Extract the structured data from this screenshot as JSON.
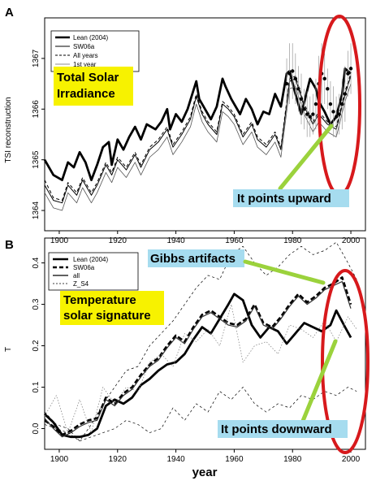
{
  "chart_data": [
    {
      "panel": "A",
      "type": "line",
      "ylabel": "TSI reconstruction",
      "xlim": [
        1895,
        2005
      ],
      "ylim": [
        1363.6,
        1367.8
      ],
      "xticks": [
        1900,
        1920,
        1940,
        1960,
        1980,
        2000
      ],
      "xtick_labels": [
        "1900",
        "1920",
        "1940",
        "1960",
        "1980",
        "2000"
      ],
      "yticks": [
        1364,
        1365,
        1366,
        1367
      ],
      "ytick_labels": [
        "1364",
        "1365",
        "1366",
        "1367"
      ],
      "legend": [
        "Lean (2004)",
        "SW06a",
        "All years",
        "1st year"
      ],
      "annotation_title": [
        "Total Solar",
        "Irradiance"
      ],
      "annotation_note": "It points upward",
      "series": [
        {
          "name": "Lean (2004)",
          "style": "thick",
          "x": [
            1895,
            1898,
            1901,
            1903,
            1905,
            1907,
            1909,
            1911,
            1913,
            1915,
            1917,
            1918,
            1920,
            1922,
            1924,
            1926,
            1928,
            1930,
            1933,
            1935,
            1937,
            1938,
            1940,
            1942,
            1944,
            1947,
            1948,
            1950,
            1952,
            1954,
            1956,
            1957,
            1959,
            1962,
            1964,
            1966,
            1968,
            1970,
            1972,
            1974,
            1976,
            1978,
            1979,
            1981,
            1983,
            1986,
            1988,
            1989,
            1991,
            1993,
            1995,
            1997,
            1998,
            2000
          ],
          "values": [
            1365.0,
            1364.7,
            1364.6,
            1364.95,
            1364.85,
            1365.15,
            1364.95,
            1364.6,
            1364.9,
            1365.25,
            1365.35,
            1364.9,
            1365.4,
            1365.2,
            1365.45,
            1365.65,
            1365.4,
            1365.7,
            1365.6,
            1365.75,
            1366.0,
            1365.6,
            1365.9,
            1365.75,
            1366.0,
            1366.55,
            1366.2,
            1366.0,
            1365.8,
            1366.05,
            1366.6,
            1366.45,
            1366.2,
            1365.9,
            1366.2,
            1366.0,
            1365.7,
            1365.95,
            1365.9,
            1366.3,
            1366.05,
            1366.7,
            1366.75,
            1366.3,
            1365.9,
            1366.6,
            1366.4,
            1366.15,
            1365.95,
            1365.7,
            1365.85,
            1366.3,
            1366.8,
            1366.7
          ]
        },
        {
          "name": "SW06a",
          "style": "thin",
          "x": [
            1895,
            1898,
            1901,
            1903,
            1906,
            1908,
            1911,
            1913,
            1916,
            1918,
            1920,
            1923,
            1926,
            1928,
            1931,
            1934,
            1937,
            1939,
            1942,
            1945,
            1947,
            1949,
            1951,
            1954,
            1956,
            1958,
            1960,
            1963,
            1966,
            1968,
            1971,
            1974,
            1976,
            1979,
            1981,
            1984,
            1987,
            1989,
            1992,
            1995,
            1998,
            2000
          ],
          "values": [
            1364.5,
            1364.2,
            1364.15,
            1364.5,
            1364.3,
            1364.6,
            1364.3,
            1364.5,
            1364.9,
            1364.7,
            1365.0,
            1364.8,
            1365.1,
            1364.85,
            1365.2,
            1365.35,
            1365.6,
            1365.25,
            1365.5,
            1365.8,
            1366.25,
            1365.9,
            1365.7,
            1365.5,
            1366.1,
            1366.0,
            1365.85,
            1365.45,
            1365.7,
            1365.4,
            1365.25,
            1365.5,
            1365.2,
            1366.55,
            1366.6,
            1366.05,
            1365.7,
            1365.9,
            1365.7,
            1365.6,
            1366.3,
            1366.65
          ]
        },
        {
          "name": "All years",
          "style": "dashed",
          "x": [
            1895,
            1898,
            1901,
            1903,
            1906,
            1908,
            1911,
            1913,
            1916,
            1918,
            1920,
            1923,
            1926,
            1928,
            1931,
            1934,
            1937,
            1939,
            1942,
            1945,
            1947,
            1949,
            1951,
            1954,
            1956,
            1958,
            1960,
            1963,
            1966,
            1968,
            1971,
            1974,
            1976,
            1979,
            1981,
            1984,
            1987,
            1989,
            1992,
            1995,
            1998,
            2000
          ],
          "values": [
            1364.6,
            1364.25,
            1364.2,
            1364.55,
            1364.35,
            1364.65,
            1364.35,
            1364.55,
            1364.95,
            1364.75,
            1365.05,
            1364.85,
            1365.15,
            1364.9,
            1365.25,
            1365.4,
            1365.65,
            1365.3,
            1365.55,
            1365.85,
            1366.3,
            1365.95,
            1365.75,
            1365.55,
            1366.15,
            1366.05,
            1365.9,
            1365.5,
            1365.75,
            1365.45,
            1365.3,
            1365.55,
            1365.25,
            1366.6,
            1366.65,
            1366.1,
            1365.75,
            1365.95,
            1365.75,
            1365.65,
            1366.35,
            1366.7
          ]
        },
        {
          "name": "1st year",
          "style": "thin-light",
          "x": [
            1895,
            1898,
            1901,
            1903,
            1906,
            1908,
            1911,
            1913,
            1916,
            1918,
            1920,
            1923,
            1926,
            1928,
            1931,
            1934,
            1937,
            1939,
            1942,
            1945,
            1947,
            1949,
            1951,
            1954,
            1956,
            1958,
            1960,
            1963,
            1966,
            1968,
            1971,
            1974,
            1976,
            1979,
            1981,
            1984,
            1987,
            1989,
            1992,
            1995,
            1998,
            2000
          ],
          "values": [
            1364.35,
            1364.05,
            1364.0,
            1364.35,
            1364.15,
            1364.45,
            1364.15,
            1364.35,
            1364.75,
            1364.55,
            1364.85,
            1364.65,
            1364.95,
            1364.7,
            1365.05,
            1365.2,
            1365.45,
            1365.1,
            1365.35,
            1365.65,
            1366.1,
            1365.75,
            1365.55,
            1365.35,
            1365.95,
            1365.85,
            1365.7,
            1365.3,
            1365.55,
            1365.25,
            1365.1,
            1365.35,
            1365.05,
            1366.4,
            1366.45,
            1365.9,
            1365.55,
            1365.75,
            1365.55,
            1365.45,
            1366.15,
            1366.5
          ]
        }
      ],
      "observations": {
        "x": [
          1978,
          1979,
          1980,
          1981,
          1982,
          1983,
          1984,
          1985,
          1986,
          1987,
          1988,
          1989,
          1990,
          1991,
          1992,
          1993,
          1994,
          1995,
          1996,
          1997,
          1998,
          1999,
          2000
        ],
        "values": [
          1366.5,
          1366.7,
          1366.75,
          1366.6,
          1366.4,
          1366.2,
          1366.0,
          1365.9,
          1365.85,
          1365.9,
          1366.1,
          1366.5,
          1366.7,
          1366.6,
          1366.4,
          1366.1,
          1365.95,
          1365.85,
          1365.9,
          1366.1,
          1366.3,
          1366.7,
          1366.8
        ],
        "err": [
          0.5,
          0.6,
          0.55,
          0.5,
          0.45,
          0.5,
          0.4,
          0.45,
          0.4,
          0.4,
          0.5,
          0.55,
          0.6,
          0.5,
          0.4,
          0.45,
          0.5,
          0.4,
          0.4,
          0.5,
          0.55,
          0.45,
          0.5
        ]
      }
    },
    {
      "panel": "B",
      "type": "line",
      "ylabel": "T",
      "xlabel": "year",
      "xlim": [
        1895,
        2005
      ],
      "ylim": [
        -0.05,
        0.46
      ],
      "xticks": [
        1900,
        1920,
        1940,
        1960,
        1980,
        2000
      ],
      "xtick_labels": [
        "1900",
        "1920",
        "1940",
        "1960",
        "1980",
        "2000"
      ],
      "yticks": [
        0.0,
        0.1,
        0.2,
        0.3,
        0.4
      ],
      "ytick_labels": [
        "0.0",
        "0.1",
        "0.2",
        "0.3",
        "0.4"
      ],
      "legend": [
        "Lean (2004)",
        "SW06a",
        "all",
        "Z_S4"
      ],
      "annotation_title": [
        "Temperature",
        "solar signature"
      ],
      "annotation_note": "It points downward",
      "annotation_top": "Gibbs artifacts",
      "series": [
        {
          "name": "Lean (2004)",
          "style": "thick",
          "x": [
            1895,
            1898,
            1901,
            1904,
            1907,
            1910,
            1913,
            1916,
            1919,
            1922,
            1925,
            1928,
            1931,
            1934,
            1937,
            1940,
            1943,
            1946,
            1949,
            1952,
            1955,
            1958,
            1960,
            1963,
            1966,
            1969,
            1972,
            1975,
            1978,
            1981,
            1984,
            1987,
            1990,
            1993,
            1995,
            1998,
            2000
          ],
          "values": [
            0.035,
            0.015,
            -0.015,
            -0.02,
            -0.02,
            -0.015,
            0.0,
            0.055,
            0.07,
            0.06,
            0.075,
            0.105,
            0.12,
            0.14,
            0.155,
            0.16,
            0.18,
            0.215,
            0.245,
            0.23,
            0.265,
            0.3,
            0.325,
            0.31,
            0.25,
            0.22,
            0.245,
            0.235,
            0.205,
            0.23,
            0.255,
            0.245,
            0.235,
            0.25,
            0.285,
            0.245,
            0.22
          ]
        },
        {
          "name": "SW06a",
          "style": "dashed-thick",
          "x": [
            1895,
            1898,
            1901,
            1904,
            1907,
            1910,
            1913,
            1916,
            1919,
            1922,
            1925,
            1928,
            1931,
            1934,
            1937,
            1940,
            1943,
            1946,
            1949,
            1952,
            1955,
            1958,
            1961,
            1964,
            1967,
            1970,
            1973,
            1976,
            1979,
            1982,
            1985,
            1988,
            1991,
            1994,
            1997,
            2000
          ],
          "values": [
            0.02,
            0.005,
            -0.015,
            -0.005,
            0.01,
            0.02,
            0.025,
            0.075,
            0.06,
            0.085,
            0.1,
            0.13,
            0.155,
            0.17,
            0.2,
            0.225,
            0.21,
            0.245,
            0.275,
            0.285,
            0.27,
            0.255,
            0.25,
            0.265,
            0.3,
            0.255,
            0.245,
            0.27,
            0.3,
            0.325,
            0.305,
            0.32,
            0.34,
            0.35,
            0.365,
            0.3
          ]
        },
        {
          "name": "all",
          "style": "solid",
          "x": [
            1895,
            1898,
            1901,
            1904,
            1907,
            1910,
            1913,
            1916,
            1919,
            1922,
            1925,
            1928,
            1931,
            1934,
            1937,
            1940,
            1943,
            1946,
            1949,
            1952,
            1955,
            1958,
            1961,
            1964,
            1967,
            1970,
            1973,
            1976,
            1979,
            1982,
            1985,
            1988,
            1991,
            1994,
            1997,
            2000
          ],
          "values": [
            0.025,
            0.0,
            -0.02,
            -0.01,
            0.005,
            0.015,
            0.02,
            0.07,
            0.055,
            0.08,
            0.095,
            0.125,
            0.15,
            0.165,
            0.195,
            0.22,
            0.205,
            0.24,
            0.27,
            0.28,
            0.265,
            0.25,
            0.245,
            0.26,
            0.295,
            0.25,
            0.24,
            0.265,
            0.295,
            0.32,
            0.3,
            0.315,
            0.335,
            0.345,
            0.355,
            0.29
          ]
        },
        {
          "name": "Z_S4",
          "style": "dotted",
          "x": [
            1895,
            1899,
            1903,
            1907,
            1911,
            1915,
            1919,
            1923,
            1927,
            1931,
            1935,
            1939,
            1943,
            1947,
            1951,
            1955,
            1959,
            1963,
            1967,
            1971,
            1975,
            1979,
            1983,
            1987,
            1991,
            1995,
            1999,
            2002
          ],
          "values": [
            0.03,
            0.08,
            -0.01,
            0.07,
            -0.01,
            0.1,
            0.06,
            0.1,
            0.09,
            0.16,
            0.18,
            0.15,
            0.23,
            0.21,
            0.24,
            0.2,
            0.3,
            0.16,
            0.2,
            0.21,
            0.18,
            0.25,
            0.24,
            0.22,
            0.26,
            0.21,
            0.27,
            0.24
          ]
        },
        {
          "name": "",
          "style": "dashed-thin",
          "x": [
            1895,
            1899,
            1903,
            1907,
            1911,
            1915,
            1919,
            1923,
            1927,
            1931,
            1935,
            1939,
            1943,
            1947,
            1951,
            1955,
            1959,
            1963,
            1967,
            1971,
            1975,
            1979,
            1983,
            1987,
            1991,
            1995,
            1999,
            2002
          ],
          "values": [
            0.04,
            0.01,
            0.0,
            -0.03,
            0.01,
            0.06,
            0.1,
            0.14,
            0.15,
            0.2,
            0.23,
            0.26,
            0.3,
            0.34,
            0.37,
            0.36,
            0.42,
            0.44,
            0.4,
            0.37,
            0.39,
            0.42,
            0.44,
            0.42,
            0.43,
            0.45,
            0.4,
            0.36
          ]
        },
        {
          "name": "",
          "style": "dashed-thin",
          "x": [
            1895,
            1899,
            1903,
            1907,
            1911,
            1915,
            1919,
            1923,
            1927,
            1931,
            1935,
            1939,
            1943,
            1947,
            1951,
            1955,
            1959,
            1963,
            1967,
            1971,
            1975,
            1979,
            1983,
            1987,
            1991,
            1995,
            1999,
            2002
          ],
          "values": [
            0.01,
            0.0,
            -0.01,
            -0.03,
            -0.02,
            -0.01,
            0.0,
            0.02,
            0.01,
            -0.01,
            0.0,
            0.05,
            0.02,
            0.06,
            0.04,
            0.09,
            0.07,
            0.1,
            0.06,
            0.04,
            0.06,
            0.05,
            0.08,
            0.07,
            0.09,
            0.08,
            0.1,
            0.09
          ]
        }
      ]
    }
  ]
}
